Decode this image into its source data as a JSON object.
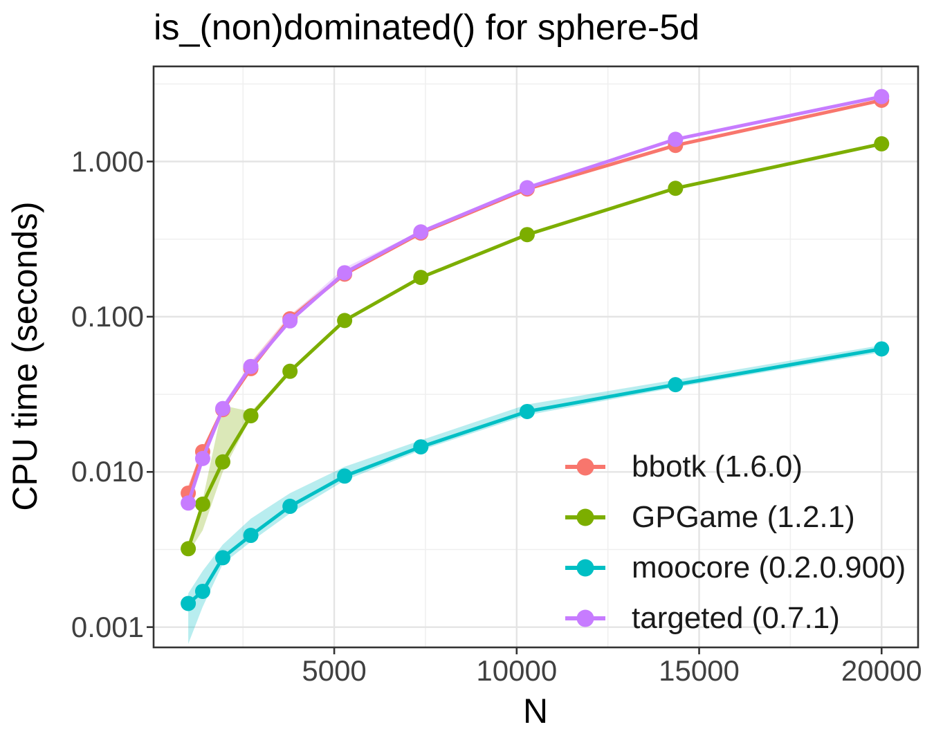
{
  "colors": {
    "background": "#FFFFFF",
    "grid_major": "#E4E4E4",
    "grid_minor": "#EFEFEF",
    "panel_border": "#333333",
    "tick_text": "#404040",
    "title_text": "#000000",
    "ribbon_opacity": 0.28
  },
  "chart_data": {
    "type": "line",
    "title": "is_(non)dominated() for sphere-5d",
    "xlabel": "N",
    "ylabel": "CPU time (seconds)",
    "x_scale": "linear",
    "y_scale": "log",
    "x_range": [
      50,
      21000
    ],
    "y_range": [
      0.00074,
      4.1
    ],
    "grid": true,
    "legend_position": "inside-bottom-right",
    "x_ticks": [
      5000,
      10000,
      15000,
      20000
    ],
    "x_tick_labels": [
      "5000",
      "10000",
      "15000",
      "20000"
    ],
    "x_minor_ticks": [
      2500,
      7500,
      12500,
      17500
    ],
    "y_ticks": [
      0.001,
      0.01,
      0.1,
      1
    ],
    "y_tick_labels": [
      "0.001",
      "0.010",
      "0.100",
      "1.000"
    ],
    "y_minor_ticks": [
      0.00316,
      0.0316,
      0.316,
      3.162
    ],
    "x": [
      1000,
      1395,
      1946,
      2715,
      3788,
      5285,
      7374,
      10287,
      14352,
      20000
    ],
    "series": [
      {
        "name": "bbotk",
        "label": "bbotk (1.6.0)",
        "color": "#F8766D",
        "values": [
          0.0073,
          0.0135,
          0.0252,
          0.0463,
          0.097,
          0.188,
          0.346,
          0.665,
          1.27,
          2.48
        ],
        "ribbon_upper": [
          0.0082,
          0.0142,
          0.0258,
          0.0512,
          0.103,
          0.194,
          0.352,
          0.675,
          1.3,
          2.53
        ],
        "ribbon_lower": [
          0.0066,
          0.0128,
          0.0246,
          0.045,
          0.094,
          0.183,
          0.34,
          0.655,
          1.25,
          2.44
        ]
      },
      {
        "name": "gpgame",
        "label": "GPGame (1.2.1)",
        "color": "#7CAE00",
        "values": [
          0.0032,
          0.0062,
          0.0116,
          0.023,
          0.0445,
          0.0945,
          0.179,
          0.338,
          0.672,
          1.3
        ],
        "ribbon_upper": [
          0.0034,
          0.0066,
          0.0268,
          0.0245,
          0.0452,
          0.0955,
          0.181,
          0.341,
          0.678,
          1.31
        ],
        "ribbon_lower": [
          0.003,
          0.0042,
          0.01,
          0.0224,
          0.0438,
          0.0932,
          0.177,
          0.335,
          0.666,
          1.29
        ]
      },
      {
        "name": "moocore",
        "label": "moocore (0.2.0.900)",
        "color": "#00BFC4",
        "values": [
          0.00142,
          0.0017,
          0.0028,
          0.0039,
          0.006,
          0.0094,
          0.0145,
          0.0245,
          0.0365,
          0.062
        ],
        "ribbon_upper": [
          0.00165,
          0.0023,
          0.0034,
          0.005,
          0.0073,
          0.0108,
          0.016,
          0.0272,
          0.0392,
          0.0655
        ],
        "ribbon_lower": [
          0.00078,
          0.00135,
          0.00255,
          0.00355,
          0.0054,
          0.0088,
          0.0138,
          0.0232,
          0.035,
          0.059
        ]
      },
      {
        "name": "targeted",
        "label": "targeted (0.7.1)",
        "color": "#C77CFF",
        "values": [
          0.0063,
          0.0122,
          0.0256,
          0.0478,
          0.094,
          0.192,
          0.352,
          0.678,
          1.39,
          2.62
        ],
        "ribbon_upper": [
          0.0066,
          0.0127,
          0.0272,
          0.0505,
          0.101,
          0.207,
          0.357,
          0.69,
          1.42,
          2.67
        ],
        "ribbon_lower": [
          0.006,
          0.0117,
          0.025,
          0.0468,
          0.0915,
          0.187,
          0.346,
          0.67,
          1.37,
          2.58
        ]
      }
    ]
  }
}
